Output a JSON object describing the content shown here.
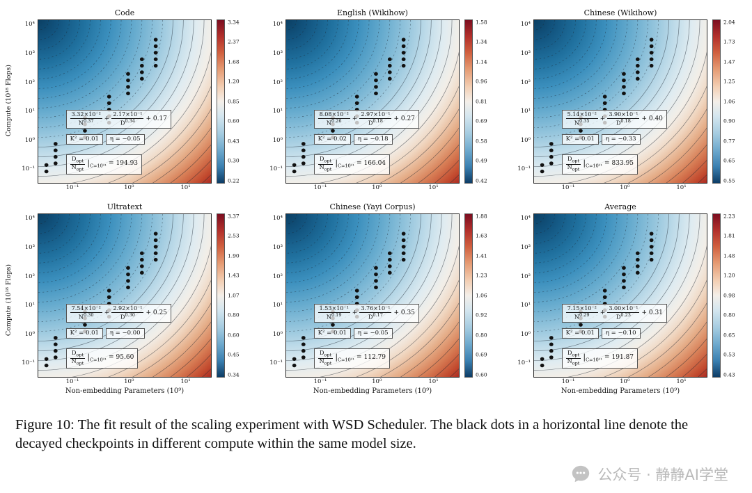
{
  "axes": {
    "ylabel": "Compute (10¹⁸ Flops)",
    "xlabel": "Non-embedding Parameters (10⁹)",
    "y_ticks": [
      "10⁴",
      "10³",
      "10²",
      "10¹",
      "10⁰",
      "10⁻¹"
    ],
    "x_ticks": [
      "10⁻¹",
      "10⁰",
      "10¹"
    ]
  },
  "labels": {
    "N": "N",
    "D": "D",
    "opt": "opt",
    "plus": "+",
    "bar": "|",
    "eq": "=",
    "cond": "C=10²¹"
  },
  "dots": [
    [
      4.7,
      89
    ],
    [
      4.7,
      93
    ],
    [
      10,
      76
    ],
    [
      10,
      80
    ],
    [
      10,
      84
    ],
    [
      10,
      88
    ],
    [
      27,
      60
    ],
    [
      27,
      64
    ],
    [
      27,
      68
    ],
    [
      27,
      72
    ],
    [
      41,
      47
    ],
    [
      41,
      51
    ],
    [
      41,
      55
    ],
    [
      41,
      59
    ],
    [
      41,
      63
    ],
    [
      52,
      33
    ],
    [
      52,
      37
    ],
    [
      52,
      41
    ],
    [
      52,
      45
    ],
    [
      60,
      24
    ],
    [
      60,
      28
    ],
    [
      60,
      32
    ],
    [
      60,
      36
    ],
    [
      68,
      12
    ],
    [
      68,
      16
    ],
    [
      68,
      20
    ],
    [
      68,
      24
    ],
    [
      68,
      28
    ]
  ],
  "plots": [
    {
      "title": "Code",
      "formula": {
        "n_num": "3.32×10⁻²",
        "n_exp": "0.37",
        "d_num": "2.17×10⁻¹",
        "d_exp": "0.34",
        "const": "+ 0.17"
      },
      "k2": "K² = 0.01",
      "eta": "η = −0.05",
      "ratio_value": "194.93",
      "cbar_ticks": [
        "3.34",
        "2.37",
        "1.68",
        "1.20",
        "0.85",
        "0.60",
        "0.43",
        "0.30",
        "0.22"
      ]
    },
    {
      "title": "English (Wikihow)",
      "formula": {
        "n_num": "8.08×10⁻²",
        "n_exp": "0.26",
        "d_num": "2.97×10⁻¹",
        "d_exp": "0.18",
        "const": "+ 0.27"
      },
      "k2": "K² = 0.02",
      "eta": "η = −0.18",
      "ratio_value": "166.04",
      "cbar_ticks": [
        "1.58",
        "1.34",
        "1.14",
        "0.96",
        "0.81",
        "0.69",
        "0.58",
        "0.49",
        "0.42"
      ]
    },
    {
      "title": "Chinese (Wikihow)",
      "formula": {
        "n_num": "5.14×10⁻²",
        "n_exp": "0.35",
        "d_num": "3.90×10⁻¹",
        "d_exp": "0.18",
        "const": "+ 0.40"
      },
      "k2": "K² = 0.01",
      "eta": "η = −0.33",
      "ratio_value": "833.95",
      "cbar_ticks": [
        "2.04",
        "1.73",
        "1.47",
        "1.25",
        "1.06",
        "0.90",
        "0.77",
        "0.65",
        "0.55"
      ]
    },
    {
      "title": "Ultratext",
      "formula": {
        "n_num": "7.54×10⁻²",
        "n_exp": "0.30",
        "d_num": "2.92×10⁻¹",
        "d_exp": "0.30",
        "const": "+ 0.25"
      },
      "k2": "K² = 0.01",
      "eta": "η = −0.00",
      "ratio_value": "95.60",
      "cbar_ticks": [
        "3.37",
        "2.53",
        "1.90",
        "1.43",
        "1.07",
        "0.80",
        "0.60",
        "0.45",
        "0.34"
      ]
    },
    {
      "title": "Chinese (Yayi Corpus)",
      "formula": {
        "n_num": "1.53×10⁻¹",
        "n_exp": "0.19",
        "d_num": "3.76×10⁻¹",
        "d_exp": "0.17",
        "const": "+ 0.35"
      },
      "k2": "K² = 0.01",
      "eta": "η = −0.05",
      "ratio_value": "112.79",
      "cbar_ticks": [
        "1.88",
        "1.63",
        "1.41",
        "1.23",
        "1.06",
        "0.92",
        "0.80",
        "0.69",
        "0.60"
      ]
    },
    {
      "title": "Average",
      "formula": {
        "n_num": "7.15×10⁻²",
        "n_exp": "0.29",
        "d_num": "3.00×10⁻¹",
        "d_exp": "0.23",
        "const": "+ 0.31"
      },
      "k2": "K² = 0.01",
      "eta": "η = −0.10",
      "ratio_value": "191.87",
      "cbar_ticks": [
        "2.23",
        "1.81",
        "1.48",
        "1.20",
        "0.98",
        "0.80",
        "0.65",
        "0.53",
        "0.43"
      ]
    }
  ],
  "caption": "Figure 10: The fit result of the scaling experiment with WSD Scheduler. The black dots in a horizontal line denote the decayed checkpoints in different compute within the same model size.",
  "watermark": {
    "text": "公众号 · 静静AI学堂"
  },
  "colors": {
    "cbar_top": "#7c0e20",
    "cbar_mid": "#f4efe9",
    "cbar_bottom": "#0d3d66",
    "dot": "#111111"
  }
}
